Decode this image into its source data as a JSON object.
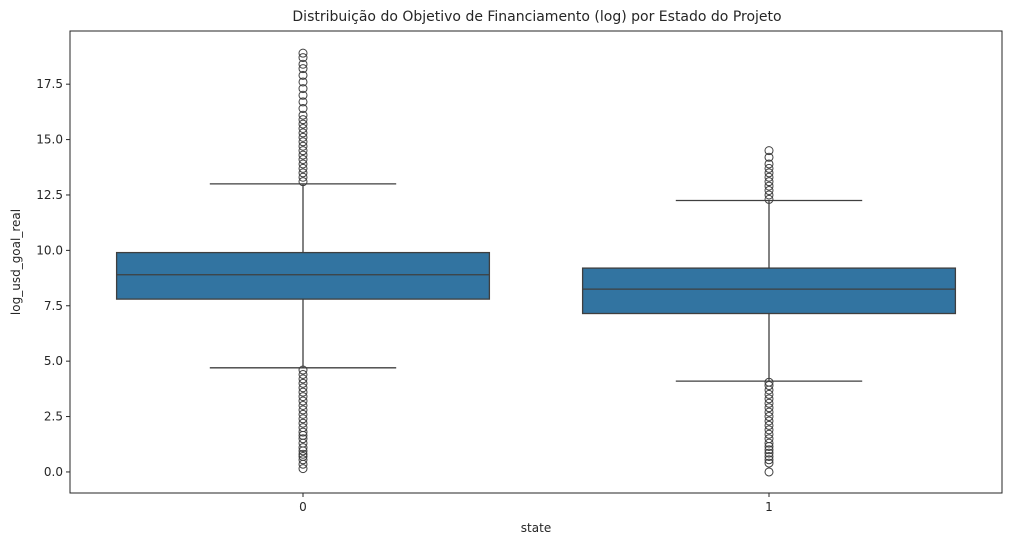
{
  "chart_data": {
    "type": "box",
    "title": "Distribuição do Objetivo de Financiamento (log) por Estado do Projeto",
    "xlabel": "state",
    "ylabel": "log_usd_goal_real",
    "categories": [
      "0",
      "1"
    ],
    "ylim": [
      -0.95,
      19.9
    ],
    "yticks": [
      0.0,
      2.5,
      5.0,
      7.5,
      10.0,
      12.5,
      15.0,
      17.5
    ],
    "ytick_labels": [
      "0.0",
      "2.5",
      "5.0",
      "7.5",
      "10.0",
      "12.5",
      "15.0",
      "17.5"
    ],
    "grid": false,
    "colors": {
      "box_fill": "#3274a1",
      "line": "#3f3f3f",
      "outlier": "#3f3f3f"
    },
    "boxes": [
      {
        "category": "0",
        "whisker_low": 4.7,
        "q1": 7.8,
        "median": 8.9,
        "q3": 9.9,
        "whisker_high": 13.0,
        "outliers_low": [
          0.15,
          0.35,
          0.55,
          0.7,
          0.8,
          0.95,
          1.1,
          1.3,
          1.5,
          1.65,
          1.8,
          2.0,
          2.2,
          2.4,
          2.6,
          2.8,
          3.0,
          3.2,
          3.4,
          3.6,
          3.8,
          4.0,
          4.2,
          4.4,
          4.6
        ],
        "outliers_high": [
          13.1,
          13.3,
          13.5,
          13.7,
          13.9,
          14.1,
          14.3,
          14.5,
          14.7,
          14.9,
          15.1,
          15.3,
          15.5,
          15.7,
          15.9,
          16.1,
          16.4,
          16.7,
          17.0,
          17.3,
          17.6,
          17.9,
          18.2,
          18.4,
          18.7,
          18.9
        ]
      },
      {
        "category": "1",
        "whisker_low": 4.1,
        "q1": 7.15,
        "median": 8.25,
        "q3": 9.2,
        "whisker_high": 12.25,
        "outliers_low": [
          0.0,
          0.4,
          0.55,
          0.7,
          0.85,
          1.0,
          1.15,
          1.3,
          1.5,
          1.7,
          1.9,
          2.1,
          2.3,
          2.5,
          2.7,
          2.9,
          3.1,
          3.3,
          3.5,
          3.7,
          3.9,
          4.05
        ],
        "outliers_high": [
          12.3,
          12.5,
          12.7,
          12.9,
          13.1,
          13.3,
          13.5,
          13.7,
          13.9,
          14.2,
          14.5
        ]
      }
    ]
  }
}
